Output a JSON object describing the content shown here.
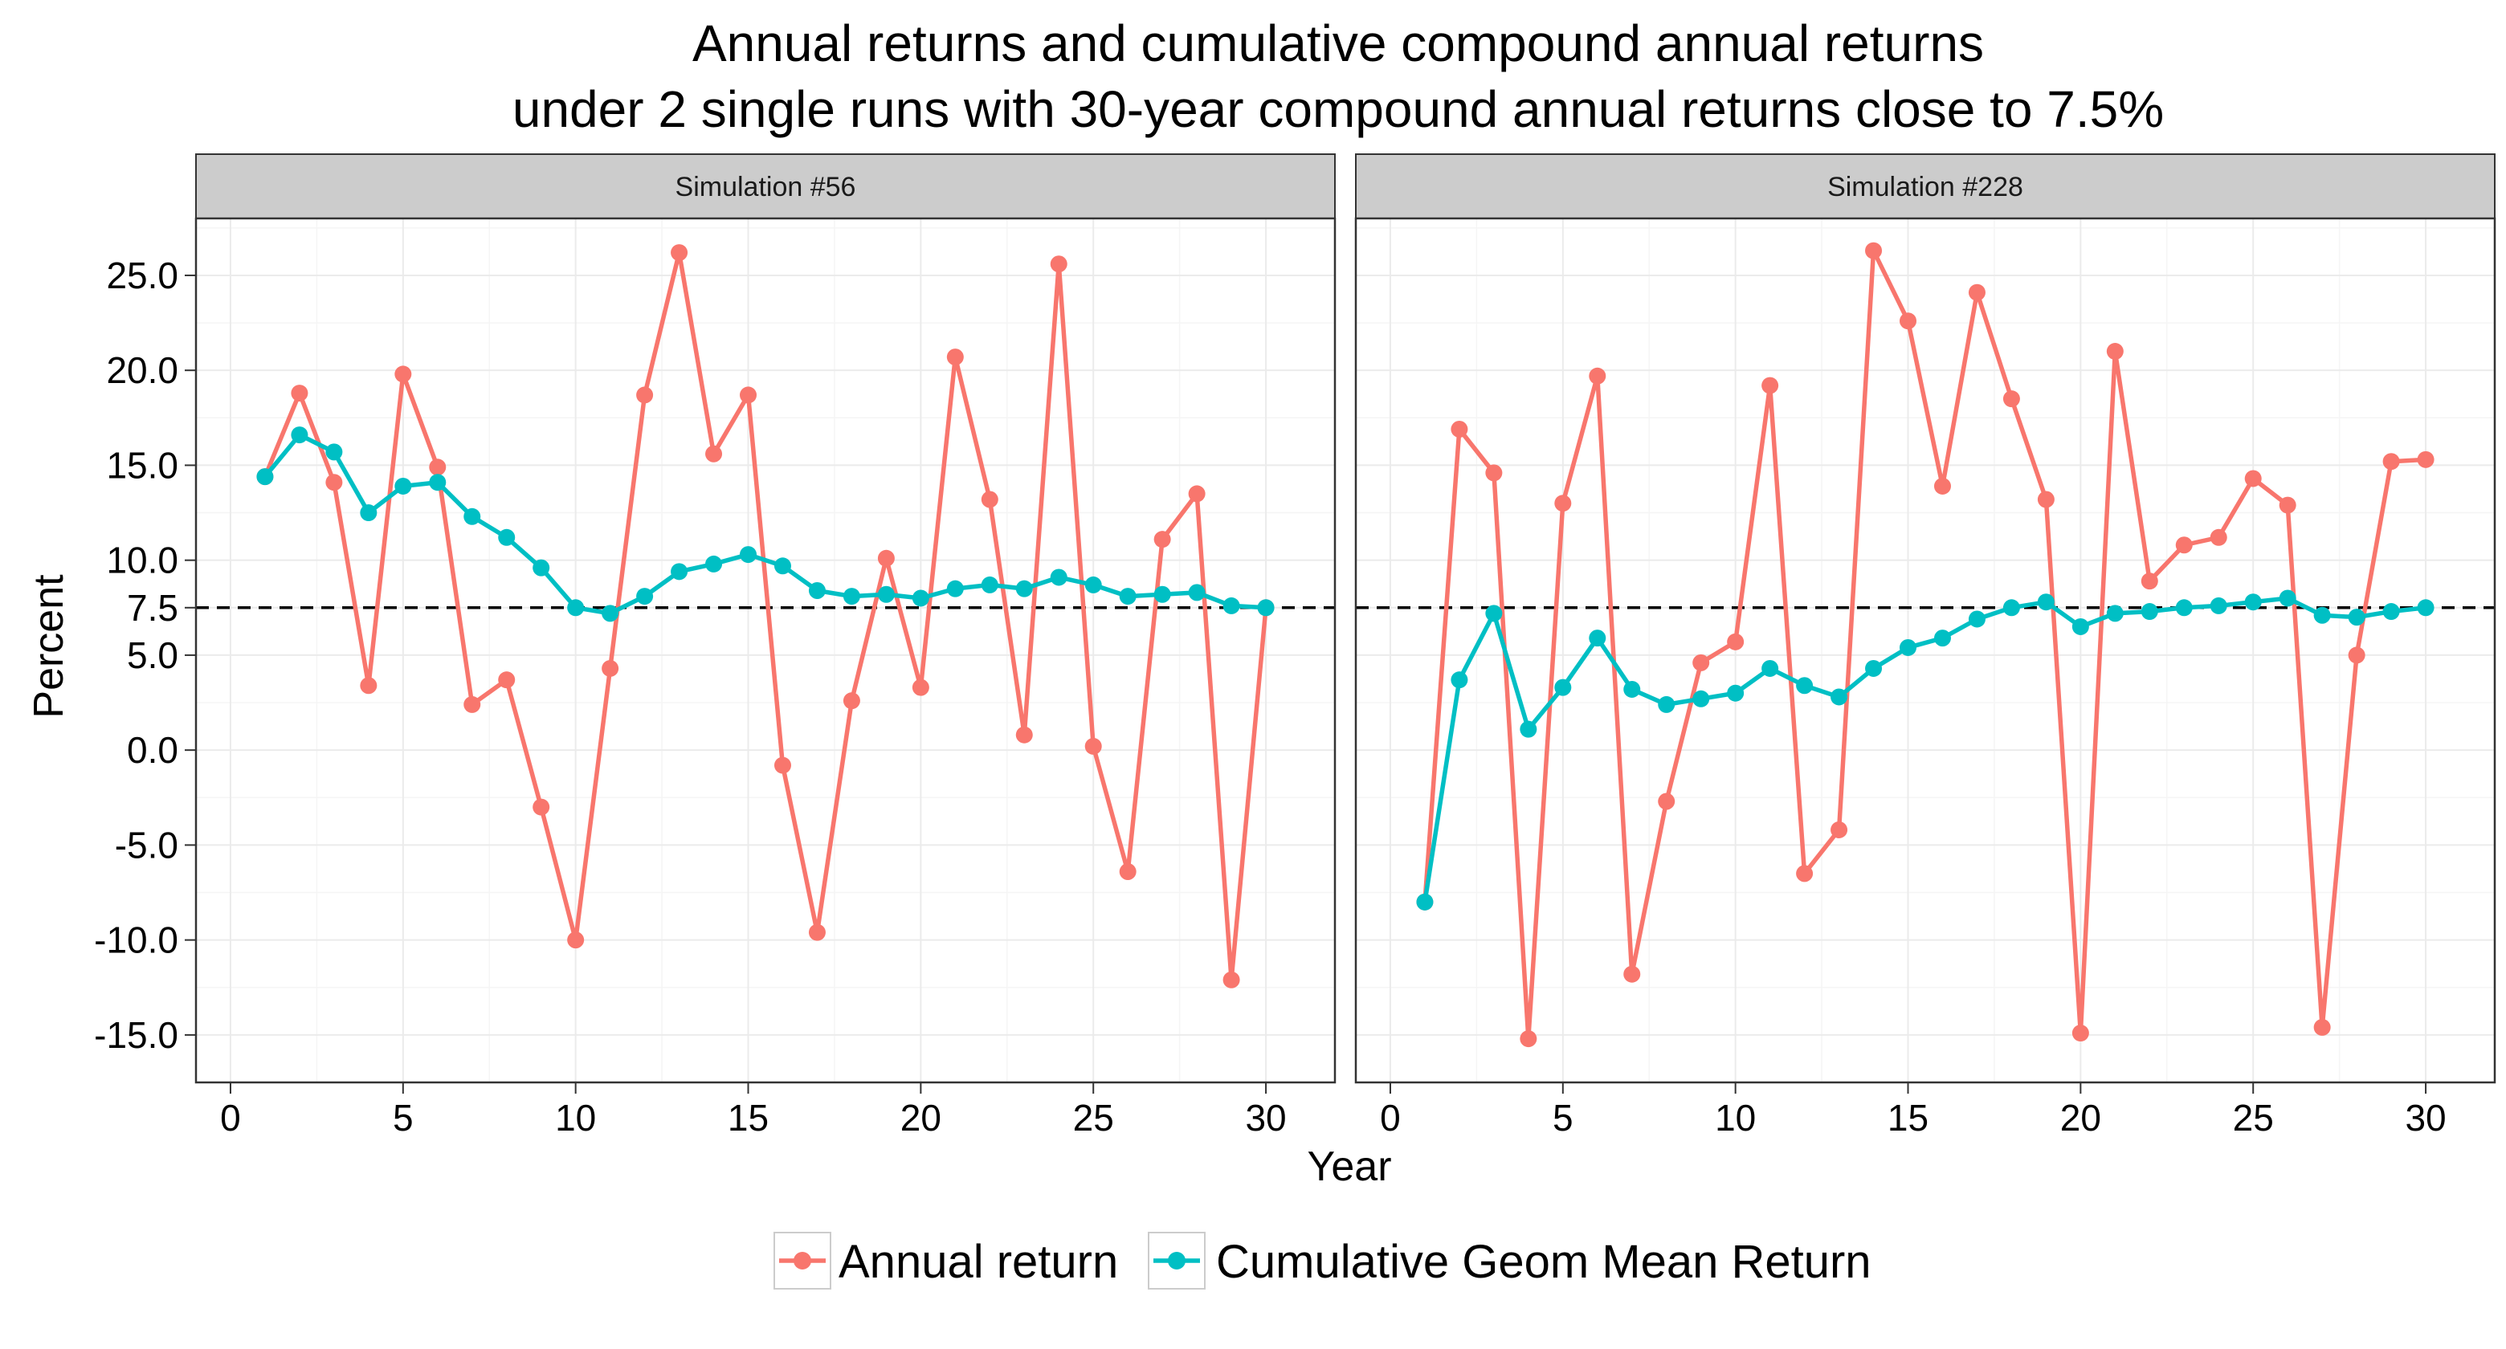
{
  "chart_data": {
    "type": "line",
    "title": "Annual returns and cumulative compound annual returns",
    "subtitle": "under 2 single runs with 30-year compound annual returns close to 7.5%",
    "xlabel": "Year",
    "ylabel": "Percent",
    "xlim": [
      -1,
      32
    ],
    "ylim": [
      -17.5,
      28
    ],
    "x_ticks": [
      "0",
      "5",
      "10",
      "15",
      "20",
      "25",
      "30"
    ],
    "y_ticks": [
      "-15.0",
      "-10.0",
      "-5.0",
      "0.0",
      "5.0",
      "7.5",
      "10.0",
      "15.0",
      "20.0",
      "25.0"
    ],
    "reference_line": {
      "y": 7.5,
      "style": "dashed"
    },
    "grid": true,
    "legend_position": "bottom",
    "colors": {
      "annual": "#F8766D",
      "cumulative": "#00BFC4",
      "strip_bg": "#CCCCCC",
      "grid": "#EBEBEB"
    },
    "series_names": [
      "Annual return",
      "Cumulative Geom Mean Return"
    ],
    "panels": [
      {
        "label": "Simulation #56",
        "x": [
          1,
          2,
          3,
          4,
          5,
          6,
          7,
          8,
          9,
          10,
          11,
          12,
          13,
          14,
          15,
          16,
          17,
          18,
          19,
          20,
          21,
          22,
          23,
          24,
          25,
          26,
          27,
          28,
          29,
          30
        ],
        "series": [
          {
            "name": "Annual return",
            "values": [
              14.4,
              18.8,
              14.1,
              3.4,
              19.8,
              14.9,
              2.4,
              3.7,
              -3.0,
              -10.0,
              4.3,
              18.7,
              26.2,
              15.6,
              18.7,
              -0.8,
              -9.6,
              2.6,
              10.1,
              3.3,
              20.7,
              13.2,
              0.8,
              25.6,
              0.2,
              -6.4,
              11.1,
              13.5,
              -12.1,
              7.5
            ]
          },
          {
            "name": "Cumulative Geom Mean Return",
            "values": [
              14.4,
              16.6,
              15.7,
              12.5,
              13.9,
              14.1,
              12.3,
              11.2,
              9.6,
              7.5,
              7.2,
              8.1,
              9.4,
              9.8,
              10.3,
              9.7,
              8.4,
              8.1,
              8.2,
              8.0,
              8.5,
              8.7,
              8.5,
              9.1,
              8.7,
              8.1,
              8.2,
              8.3,
              7.6,
              7.5
            ]
          }
        ]
      },
      {
        "label": "Simulation #228",
        "x": [
          1,
          2,
          3,
          4,
          5,
          6,
          7,
          8,
          9,
          10,
          11,
          12,
          13,
          14,
          15,
          16,
          17,
          18,
          19,
          20,
          21,
          22,
          23,
          24,
          25,
          26,
          27,
          28,
          29,
          30
        ],
        "series": [
          {
            "name": "Annual return",
            "values": [
              -8.0,
              16.9,
              14.6,
              -15.2,
              13.0,
              19.7,
              -11.8,
              -2.7,
              4.6,
              5.7,
              19.2,
              -6.5,
              -4.2,
              26.3,
              22.6,
              13.9,
              24.1,
              18.5,
              13.2,
              -14.9,
              21.0,
              8.9,
              10.8,
              11.2,
              14.3,
              12.9,
              -14.6,
              5.0,
              15.2,
              15.3
            ]
          },
          {
            "name": "Cumulative Geom Mean Return",
            "values": [
              -8.0,
              3.7,
              7.2,
              1.1,
              3.3,
              5.9,
              3.2,
              2.4,
              2.7,
              3.0,
              4.3,
              3.4,
              2.8,
              4.3,
              5.4,
              5.9,
              6.9,
              7.5,
              7.8,
              6.5,
              7.2,
              7.3,
              7.5,
              7.6,
              7.8,
              8.0,
              7.1,
              7.0,
              7.3,
              7.5
            ]
          }
        ]
      }
    ]
  }
}
